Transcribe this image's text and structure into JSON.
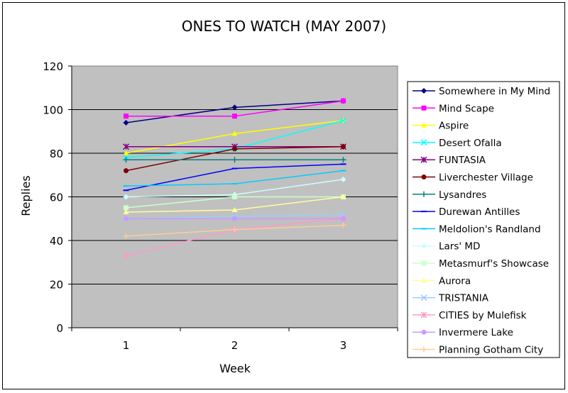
{
  "chart_data": {
    "type": "line",
    "title": "ONES TO WATCH (MAY 2007)",
    "xlabel": "Week",
    "ylabel": "Replies",
    "x": [
      1,
      2,
      3
    ],
    "x_tick_labels": [
      "1",
      "2",
      "3"
    ],
    "ylim": [
      0,
      120
    ],
    "y_ticks": [
      0,
      20,
      40,
      60,
      80,
      100,
      120
    ],
    "y_tick_labels": [
      "0",
      "20",
      "40",
      "60",
      "80",
      "100",
      "120"
    ],
    "grid": "horizontal",
    "legend_position": "right",
    "plot_background": "#c0c0c0",
    "series": [
      {
        "name": "Somewhere in My Mind",
        "values": [
          94,
          101,
          104
        ],
        "color": "#000080",
        "marker": "diamond"
      },
      {
        "name": "Mind Scape",
        "values": [
          97,
          97,
          104
        ],
        "color": "#ff00ff",
        "marker": "square"
      },
      {
        "name": "Aspire",
        "values": [
          80,
          89,
          95
        ],
        "color": "#ffff00",
        "marker": "triangle"
      },
      {
        "name": "Desert Ofalla",
        "values": [
          78,
          82,
          95
        ],
        "color": "#00ffff",
        "marker": "x"
      },
      {
        "name": "FUNTASIA",
        "values": [
          83,
          83,
          83
        ],
        "color": "#800080",
        "marker": "star"
      },
      {
        "name": "Liverchester Village",
        "values": [
          72,
          82,
          83
        ],
        "color": "#800000",
        "marker": "circle"
      },
      {
        "name": "Lysandres",
        "values": [
          77,
          77,
          77
        ],
        "color": "#008080",
        "marker": "plus"
      },
      {
        "name": "Durewan Antilles",
        "values": [
          63,
          73,
          75
        ],
        "color": "#0000ff",
        "marker": "dash"
      },
      {
        "name": "Meldolion's Randland",
        "values": [
          65,
          66,
          72
        ],
        "color": "#00ccff",
        "marker": "dash"
      },
      {
        "name": "Lars' MD",
        "values": [
          60,
          61,
          68
        ],
        "color": "#ccffff",
        "marker": "diamond"
      },
      {
        "name": "Metasmurf's Showcase",
        "values": [
          55,
          60,
          60
        ],
        "color": "#ccffcc",
        "marker": "square"
      },
      {
        "name": "Aurora",
        "values": [
          53,
          54,
          60
        ],
        "color": "#ffff99",
        "marker": "triangle"
      },
      {
        "name": "TRISTANIA",
        "values": [
          50,
          51,
          52
        ],
        "color": "#99ccff",
        "marker": "x"
      },
      {
        "name": "CITIES by Mulefisk",
        "values": [
          33,
          45,
          50
        ],
        "color": "#ff99cc",
        "marker": "star"
      },
      {
        "name": "Invermere Lake",
        "values": [
          50,
          50,
          50
        ],
        "color": "#cc99ff",
        "marker": "circle"
      },
      {
        "name": "Planning Gotham City",
        "values": [
          42,
          45,
          47
        ],
        "color": "#ffcc99",
        "marker": "plus"
      }
    ]
  }
}
